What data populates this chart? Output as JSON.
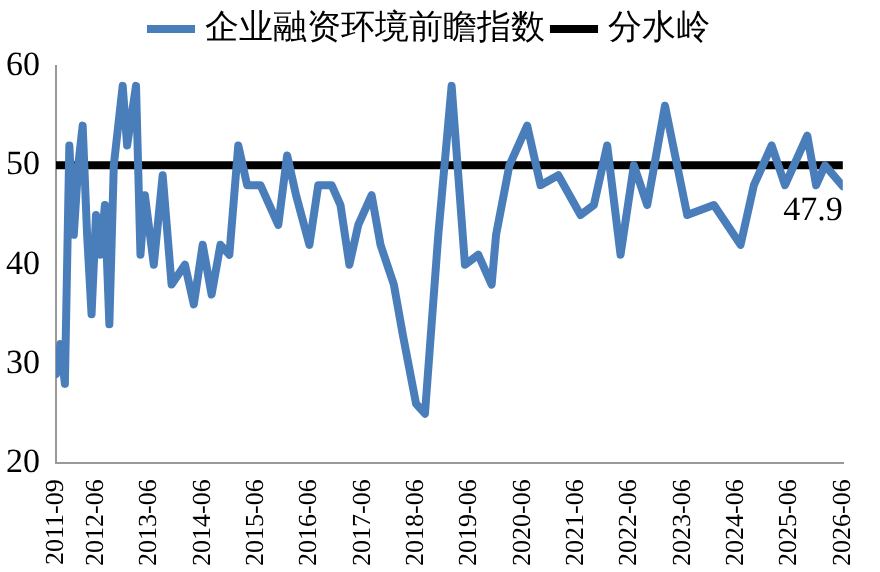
{
  "chart_data": {
    "type": "line",
    "legend": "top",
    "marker": "none",
    "grid": false,
    "xlim": [
      "2011-09",
      "2026-06"
    ],
    "ylim": [
      20,
      60
    ],
    "yticks": [
      20,
      30,
      40,
      50,
      60
    ],
    "xticks": [
      "2011-09",
      "2012-06",
      "2013-06",
      "2014-06",
      "2015-06",
      "2016-06",
      "2017-06",
      "2018-06",
      "2019-06",
      "2020-06",
      "2021-06",
      "2022-06",
      "2023-06",
      "2024-06",
      "2025-06",
      "2026-06"
    ],
    "series": [
      {
        "name": "企业融资环境前瞻指数",
        "color": "#4a7ebb",
        "x": [
          "2011-09",
          "2011-10",
          "2011-11",
          "2011-12",
          "2012-01",
          "2012-02",
          "2012-03",
          "2012-04",
          "2012-05",
          "2012-06",
          "2012-07",
          "2012-08",
          "2012-09",
          "2012-10",
          "2012-12",
          "2013-01",
          "2013-03",
          "2013-04",
          "2013-05",
          "2013-07",
          "2013-09",
          "2013-11",
          "2014-02",
          "2014-04",
          "2014-06",
          "2014-08",
          "2014-10",
          "2014-12",
          "2015-02",
          "2015-04",
          "2015-07",
          "2015-11",
          "2016-01",
          "2016-03",
          "2016-06",
          "2016-08",
          "2016-11",
          "2017-01",
          "2017-03",
          "2017-05",
          "2017-08",
          "2017-10",
          "2018-01",
          "2018-03",
          "2018-06",
          "2018-08",
          "2018-09",
          "2018-11",
          "2019-02",
          "2019-05",
          "2019-08",
          "2019-11",
          "2019-12",
          "2020-03",
          "2020-07",
          "2020-10",
          "2021-02",
          "2021-07",
          "2021-10",
          "2022-01",
          "2022-04",
          "2022-07",
          "2022-10",
          "2023-02",
          "2023-07",
          "2024-01",
          "2024-07",
          "2024-10",
          "2025-02",
          "2025-05",
          "2025-10",
          "2025-12",
          "2026-02",
          "2026-06"
        ],
        "values": [
          29,
          32,
          28,
          52,
          43,
          50,
          54,
          43,
          35,
          45,
          41,
          46,
          34,
          50,
          58,
          52,
          58,
          41,
          47,
          40,
          49,
          38,
          40,
          36,
          42,
          37,
          42,
          41,
          52,
          48,
          48,
          44,
          51,
          47,
          42,
          48,
          48,
          46,
          40,
          44,
          47,
          42,
          38,
          33,
          26,
          25,
          31,
          43,
          58,
          40,
          41,
          38,
          43,
          50,
          54,
          48,
          49,
          45,
          46,
          52,
          41,
          50,
          46,
          56,
          45,
          46,
          42,
          48,
          52,
          48,
          53,
          48,
          50,
          47.9
        ],
        "value_labels": [
          null,
          null,
          null,
          null,
          null,
          null,
          null,
          null,
          null,
          null,
          null,
          null,
          null,
          null,
          null,
          null,
          null,
          null,
          null,
          null,
          null,
          null,
          null,
          null,
          null,
          null,
          null,
          null,
          null,
          null,
          null,
          null,
          null,
          null,
          null,
          null,
          null,
          null,
          null,
          null,
          null,
          null,
          null,
          null,
          null,
          null,
          null,
          null,
          null,
          null,
          null,
          null,
          null,
          null,
          null,
          null,
          null,
          null,
          null,
          null,
          null,
          null,
          null,
          null,
          null,
          null,
          null,
          null,
          null,
          null,
          null,
          null,
          null,
          "47.9"
        ]
      },
      {
        "name": "分水岭",
        "color": "#000000",
        "x": [
          "2011-09",
          "2026-06"
        ],
        "values": [
          50,
          50
        ]
      }
    ]
  }
}
